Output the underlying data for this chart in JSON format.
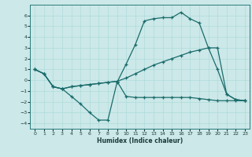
{
  "title": "",
  "xlabel": "Humidex (Indice chaleur)",
  "bg_color": "#cce8e8",
  "line_color": "#1a6b6b",
  "xlim": [
    -0.5,
    23.5
  ],
  "ylim": [
    -4.5,
    7.0
  ],
  "xticks": [
    0,
    1,
    2,
    3,
    4,
    5,
    6,
    7,
    8,
    9,
    10,
    11,
    12,
    13,
    14,
    15,
    16,
    17,
    18,
    19,
    20,
    21,
    22,
    23
  ],
  "yticks": [
    -4,
    -3,
    -2,
    -1,
    0,
    1,
    2,
    3,
    4,
    5,
    6
  ],
  "line1_x": [
    0,
    1,
    2,
    3,
    4,
    5,
    6,
    7,
    8,
    9,
    10,
    11,
    12,
    13,
    14,
    15,
    16,
    17,
    18,
    19,
    20,
    21,
    22,
    23
  ],
  "line1_y": [
    1.0,
    0.6,
    -0.6,
    -0.8,
    -1.5,
    -2.2,
    -3.0,
    -3.7,
    -3.7,
    -0.2,
    1.5,
    3.3,
    5.5,
    5.7,
    5.8,
    5.8,
    6.3,
    5.7,
    5.3,
    3.0,
    1.0,
    -1.3,
    -1.8,
    -1.9
  ],
  "line2_x": [
    0,
    1,
    2,
    3,
    4,
    5,
    6,
    7,
    8,
    9,
    10,
    11,
    12,
    13,
    14,
    15,
    16,
    17,
    18,
    19,
    20,
    21,
    22,
    23
  ],
  "line2_y": [
    1.0,
    0.6,
    -0.6,
    -0.8,
    -0.6,
    -0.5,
    -0.4,
    -0.3,
    -0.2,
    -0.1,
    0.2,
    0.6,
    1.0,
    1.4,
    1.7,
    2.0,
    2.3,
    2.6,
    2.8,
    3.0,
    3.0,
    -1.3,
    -1.8,
    -1.9
  ],
  "line3_x": [
    0,
    1,
    2,
    3,
    4,
    5,
    6,
    7,
    8,
    9,
    10,
    11,
    12,
    13,
    14,
    15,
    16,
    17,
    18,
    19,
    20,
    21,
    22,
    23
  ],
  "line3_y": [
    1.0,
    0.6,
    -0.6,
    -0.8,
    -0.6,
    -0.5,
    -0.4,
    -0.3,
    -0.2,
    -0.1,
    -1.5,
    -1.6,
    -1.6,
    -1.6,
    -1.6,
    -1.6,
    -1.6,
    -1.6,
    -1.7,
    -1.8,
    -1.9,
    -1.9,
    -1.9,
    -1.9
  ]
}
